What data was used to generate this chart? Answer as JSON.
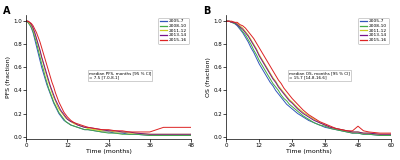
{
  "panel_A_label": "A",
  "panel_B_label": "B",
  "ylabel_A": "PFS (fraction)",
  "ylabel_B": "OS (fraction)",
  "xlabel": "Time (months)",
  "xlim_A": [
    0,
    48
  ],
  "xlim_B": [
    0,
    60
  ],
  "xticks_A": [
    0,
    12,
    24,
    36,
    48
  ],
  "xticks_B": [
    0,
    12,
    24,
    36,
    48,
    60
  ],
  "yticks": [
    0.0,
    0.2,
    0.4,
    0.6,
    0.8,
    1.0
  ],
  "annotation_A": "median PFS, months [95 % CI]\n= 7.5 [7.0-8.1]",
  "annotation_B": "median OS, months [95 % CI]\n= 15.7 [14.8-16.6]",
  "cohorts": [
    "2005-7",
    "2008-10",
    "2011-12",
    "2013-14",
    "2015-16"
  ],
  "colors": [
    "#3355bb",
    "#44aa44",
    "#cccc22",
    "#771188",
    "#dd2222"
  ],
  "pfs_curves": {
    "2005-7": {
      "t": [
        0,
        0.5,
        1,
        1.5,
        2,
        2.5,
        3,
        3.5,
        4,
        4.5,
        5,
        5.5,
        6,
        6.5,
        7,
        7.5,
        8,
        8.5,
        9,
        9.5,
        10,
        10.5,
        11,
        11.5,
        12,
        13,
        14,
        15,
        16,
        17,
        18,
        20,
        22,
        24,
        26,
        28,
        30,
        32,
        36,
        40,
        44,
        48
      ],
      "s": [
        1.0,
        0.99,
        0.97,
        0.94,
        0.9,
        0.84,
        0.78,
        0.72,
        0.66,
        0.6,
        0.55,
        0.5,
        0.45,
        0.41,
        0.37,
        0.33,
        0.29,
        0.26,
        0.23,
        0.2,
        0.18,
        0.16,
        0.14,
        0.13,
        0.12,
        0.1,
        0.09,
        0.08,
        0.07,
        0.06,
        0.06,
        0.05,
        0.04,
        0.04,
        0.03,
        0.03,
        0.02,
        0.02,
        0.01,
        0.01,
        0.01,
        0.01
      ]
    },
    "2008-10": {
      "t": [
        0,
        0.5,
        1,
        1.5,
        2,
        2.5,
        3,
        3.5,
        4,
        4.5,
        5,
        5.5,
        6,
        6.5,
        7,
        7.5,
        8,
        8.5,
        9,
        9.5,
        10,
        10.5,
        11,
        11.5,
        12,
        13,
        14,
        15,
        16,
        17,
        18,
        20,
        22,
        24,
        26,
        28,
        30,
        32,
        36,
        40,
        44,
        48
      ],
      "s": [
        1.0,
        0.99,
        0.97,
        0.95,
        0.91,
        0.86,
        0.81,
        0.75,
        0.69,
        0.63,
        0.58,
        0.52,
        0.47,
        0.42,
        0.38,
        0.34,
        0.3,
        0.27,
        0.24,
        0.21,
        0.19,
        0.17,
        0.15,
        0.13,
        0.12,
        0.1,
        0.09,
        0.08,
        0.07,
        0.06,
        0.06,
        0.05,
        0.04,
        0.03,
        0.03,
        0.02,
        0.02,
        0.02,
        0.01,
        0.01,
        0.01,
        0.01
      ]
    },
    "2011-12": {
      "t": [
        0,
        0.5,
        1,
        1.5,
        2,
        2.5,
        3,
        3.5,
        4,
        4.5,
        5,
        5.5,
        6,
        6.5,
        7,
        7.5,
        8,
        8.5,
        9,
        9.5,
        10,
        10.5,
        11,
        11.5,
        12,
        13,
        14,
        15,
        16,
        17,
        18,
        20,
        22,
        24,
        26,
        28,
        30,
        32,
        36,
        40,
        44,
        48
      ],
      "s": [
        1.0,
        1.0,
        0.98,
        0.96,
        0.93,
        0.89,
        0.84,
        0.79,
        0.74,
        0.68,
        0.63,
        0.57,
        0.52,
        0.47,
        0.43,
        0.38,
        0.34,
        0.31,
        0.27,
        0.24,
        0.22,
        0.2,
        0.18,
        0.16,
        0.15,
        0.13,
        0.11,
        0.1,
        0.09,
        0.08,
        0.07,
        0.06,
        0.05,
        0.05,
        0.04,
        0.04,
        0.03,
        0.03,
        0.02,
        0.02,
        0.02,
        0.02
      ]
    },
    "2013-14": {
      "t": [
        0,
        0.5,
        1,
        1.5,
        2,
        2.5,
        3,
        3.5,
        4,
        4.5,
        5,
        5.5,
        6,
        6.5,
        7,
        7.5,
        8,
        8.5,
        9,
        9.5,
        10,
        10.5,
        11,
        11.5,
        12,
        13,
        14,
        15,
        16,
        17,
        18,
        20,
        22,
        24,
        26,
        28,
        30,
        32,
        36,
        40,
        44,
        48
      ],
      "s": [
        1.0,
        1.0,
        0.99,
        0.97,
        0.94,
        0.9,
        0.85,
        0.8,
        0.75,
        0.69,
        0.64,
        0.59,
        0.54,
        0.49,
        0.44,
        0.4,
        0.36,
        0.32,
        0.29,
        0.26,
        0.23,
        0.21,
        0.19,
        0.17,
        0.15,
        0.13,
        0.12,
        0.1,
        0.09,
        0.08,
        0.08,
        0.07,
        0.06,
        0.05,
        0.05,
        0.04,
        0.04,
        0.03,
        0.02,
        0.02,
        0.02,
        0.02
      ]
    },
    "2015-16": {
      "t": [
        0,
        0.5,
        1,
        1.5,
        2,
        2.5,
        3,
        3.5,
        4,
        4.5,
        5,
        5.5,
        6,
        6.5,
        7,
        7.5,
        8,
        8.5,
        9,
        9.5,
        10,
        10.5,
        11,
        11.5,
        12,
        13,
        14,
        15,
        16,
        17,
        18,
        20,
        22,
        24,
        26,
        28,
        30,
        32,
        36,
        40,
        44,
        48
      ],
      "s": [
        1.0,
        1.0,
        0.99,
        0.98,
        0.96,
        0.93,
        0.9,
        0.86,
        0.82,
        0.77,
        0.72,
        0.67,
        0.62,
        0.57,
        0.52,
        0.47,
        0.43,
        0.38,
        0.34,
        0.3,
        0.27,
        0.24,
        0.21,
        0.19,
        0.17,
        0.14,
        0.12,
        0.11,
        0.1,
        0.09,
        0.08,
        0.07,
        0.06,
        0.06,
        0.05,
        0.05,
        0.04,
        0.04,
        0.04,
        0.08,
        0.08,
        0.08
      ]
    }
  },
  "os_curves": {
    "2005-7": {
      "t": [
        0,
        1,
        2,
        3,
        4,
        5,
        6,
        7,
        8,
        9,
        10,
        11,
        12,
        13,
        14,
        15,
        16,
        17,
        18,
        19,
        20,
        21,
        22,
        23,
        24,
        26,
        28,
        30,
        32,
        34,
        36,
        38,
        40,
        42,
        44,
        46,
        48,
        50,
        52,
        56,
        60
      ],
      "s": [
        1.0,
        1.0,
        0.99,
        0.98,
        0.96,
        0.93,
        0.9,
        0.86,
        0.82,
        0.77,
        0.73,
        0.68,
        0.63,
        0.59,
        0.55,
        0.51,
        0.47,
        0.44,
        0.4,
        0.37,
        0.34,
        0.31,
        0.28,
        0.26,
        0.24,
        0.2,
        0.17,
        0.14,
        0.12,
        0.1,
        0.08,
        0.07,
        0.06,
        0.05,
        0.04,
        0.03,
        0.03,
        0.02,
        0.02,
        0.01,
        0.01
      ]
    },
    "2008-10": {
      "t": [
        0,
        1,
        2,
        3,
        4,
        5,
        6,
        7,
        8,
        9,
        10,
        11,
        12,
        13,
        14,
        15,
        16,
        17,
        18,
        19,
        20,
        21,
        22,
        23,
        24,
        26,
        28,
        30,
        32,
        34,
        36,
        38,
        40,
        42,
        44,
        46,
        48,
        50,
        52,
        56,
        60
      ],
      "s": [
        1.0,
        1.0,
        0.99,
        0.98,
        0.97,
        0.94,
        0.91,
        0.88,
        0.84,
        0.8,
        0.75,
        0.71,
        0.66,
        0.62,
        0.58,
        0.54,
        0.5,
        0.46,
        0.43,
        0.4,
        0.36,
        0.33,
        0.31,
        0.28,
        0.26,
        0.22,
        0.18,
        0.15,
        0.12,
        0.1,
        0.09,
        0.07,
        0.06,
        0.05,
        0.04,
        0.03,
        0.03,
        0.02,
        0.02,
        0.01,
        0.01
      ]
    },
    "2011-12": {
      "t": [
        0,
        1,
        2,
        3,
        4,
        5,
        6,
        7,
        8,
        9,
        10,
        11,
        12,
        13,
        14,
        15,
        16,
        17,
        18,
        19,
        20,
        21,
        22,
        23,
        24,
        26,
        28,
        30,
        32,
        34,
        36,
        38,
        40,
        42,
        44,
        46,
        48,
        50,
        52,
        56,
        60
      ],
      "s": [
        1.0,
        1.0,
        0.99,
        0.99,
        0.98,
        0.96,
        0.94,
        0.91,
        0.88,
        0.84,
        0.8,
        0.76,
        0.71,
        0.67,
        0.63,
        0.59,
        0.55,
        0.51,
        0.48,
        0.44,
        0.41,
        0.38,
        0.35,
        0.32,
        0.3,
        0.25,
        0.21,
        0.18,
        0.15,
        0.12,
        0.1,
        0.08,
        0.07,
        0.06,
        0.05,
        0.04,
        0.04,
        0.03,
        0.03,
        0.02,
        0.02
      ]
    },
    "2013-14": {
      "t": [
        0,
        1,
        2,
        3,
        4,
        5,
        6,
        7,
        8,
        9,
        10,
        11,
        12,
        13,
        14,
        15,
        16,
        17,
        18,
        19,
        20,
        21,
        22,
        23,
        24,
        26,
        28,
        30,
        32,
        34,
        36,
        38,
        40,
        42,
        44,
        46,
        48,
        50,
        52,
        56,
        60
      ],
      "s": [
        1.0,
        1.0,
        0.99,
        0.99,
        0.97,
        0.95,
        0.93,
        0.9,
        0.87,
        0.83,
        0.79,
        0.75,
        0.7,
        0.66,
        0.62,
        0.58,
        0.54,
        0.5,
        0.47,
        0.43,
        0.4,
        0.37,
        0.34,
        0.31,
        0.29,
        0.24,
        0.2,
        0.17,
        0.14,
        0.12,
        0.1,
        0.08,
        0.07,
        0.06,
        0.05,
        0.04,
        0.04,
        0.03,
        0.03,
        0.02,
        0.02
      ]
    },
    "2015-16": {
      "t": [
        0,
        1,
        2,
        3,
        4,
        5,
        6,
        7,
        8,
        9,
        10,
        11,
        12,
        13,
        14,
        15,
        16,
        17,
        18,
        19,
        20,
        21,
        22,
        23,
        24,
        26,
        28,
        30,
        32,
        34,
        36,
        38,
        40,
        42,
        44,
        46,
        48,
        50,
        52,
        56,
        60
      ],
      "s": [
        1.0,
        1.0,
        1.0,
        0.99,
        0.99,
        0.97,
        0.96,
        0.94,
        0.91,
        0.88,
        0.85,
        0.81,
        0.77,
        0.73,
        0.69,
        0.65,
        0.61,
        0.57,
        0.53,
        0.49,
        0.46,
        0.42,
        0.39,
        0.36,
        0.33,
        0.28,
        0.23,
        0.19,
        0.16,
        0.13,
        0.11,
        0.09,
        0.07,
        0.06,
        0.05,
        0.05,
        0.09,
        0.05,
        0.04,
        0.03,
        0.03
      ]
    }
  }
}
